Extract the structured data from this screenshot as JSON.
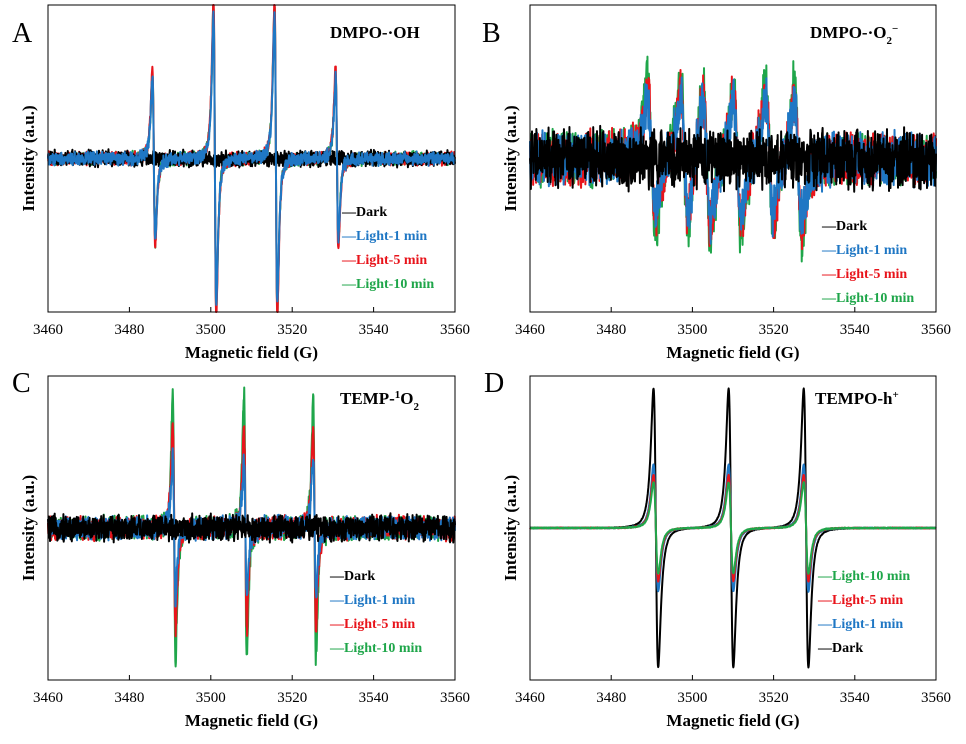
{
  "chart_data": [
    {
      "type": "line",
      "panel_letter": "A",
      "title": "DMPO-·OH",
      "title_parts": [
        {
          "t": "DMPO-·OH",
          "sup": ""
        }
      ],
      "xlabel": "Magnetic field (G)",
      "ylabel": "Intensity (a.u.)",
      "xlim": [
        3460,
        3560
      ],
      "xticks": [
        3460,
        3480,
        3500,
        3520,
        3540,
        3560
      ],
      "ylim": [
        -1.2,
        1.2
      ],
      "legend_position": "bottom-right",
      "line_centers": [
        3486.0,
        3501.0,
        3516.0,
        3531.0
      ],
      "line_heights": [
        0.7,
        1.25,
        1.25,
        0.7
      ],
      "line_width": 0.6,
      "series": [
        {
          "name": "Dark",
          "color": "#000000",
          "amp": 0.0,
          "noise": 0.06
        },
        {
          "name": "Light-1 min",
          "color": "#1f77c4",
          "amp": 0.9,
          "noise": 0.05
        },
        {
          "name": "Light-5 min",
          "color": "#e8141b",
          "amp": 1.0,
          "noise": 0.05
        },
        {
          "name": "Light-10 min",
          "color": "#1fa64a",
          "amp": 0.95,
          "noise": 0.05
        }
      ],
      "draw_order": [
        3,
        2,
        0,
        1
      ],
      "legend_order": [
        0,
        1,
        2,
        3
      ]
    },
    {
      "type": "line",
      "panel_letter": "B",
      "title": "DMPO-·O2−",
      "title_parts": [
        {
          "t": "DMPO-·O",
          "sup": ""
        },
        {
          "t": "2",
          "sub": true
        },
        {
          "t": "−",
          "sup": true
        }
      ],
      "xlabel": "Magnetic field (G)",
      "ylabel": "Intensity (a.u.)",
      "xlim": [
        3460,
        3560
      ],
      "xticks": [
        3460,
        3480,
        3500,
        3520,
        3540,
        3560
      ],
      "ylim": [
        -1.2,
        1.2
      ],
      "legend_position": "bottom-right",
      "line_centers": [
        3490.0,
        3498.0,
        3503.5,
        3511.0,
        3519.0,
        3526.0
      ],
      "line_heights": [
        0.6,
        0.6,
        0.6,
        0.6,
        0.6,
        0.6
      ],
      "line_width": 1.6,
      "series": [
        {
          "name": "Dark",
          "color": "#000000",
          "amp": 0.0,
          "noise": 0.22
        },
        {
          "name": "Light-1 min",
          "color": "#1f77c4",
          "amp": 0.75,
          "noise": 0.2
        },
        {
          "name": "Light-5 min",
          "color": "#e8141b",
          "amp": 0.85,
          "noise": 0.2
        },
        {
          "name": "Light-10 min",
          "color": "#1fa64a",
          "amp": 1.0,
          "noise": 0.2
        }
      ],
      "draw_order": [
        3,
        2,
        1,
        0
      ],
      "legend_order": [
        0,
        1,
        2,
        3
      ]
    },
    {
      "type": "line",
      "panel_letter": "C",
      "title": "TEMP-1O2",
      "title_parts": [
        {
          "t": "TEMP-",
          "sup": ""
        },
        {
          "t": "1",
          "sup": true
        },
        {
          "t": "O",
          "sup": ""
        },
        {
          "t": "2",
          "sub": true
        }
      ],
      "xlabel": "Magnetic field (G)",
      "ylabel": "Intensity (a.u.)",
      "xlim": [
        3460,
        3560
      ],
      "xticks": [
        3460,
        3480,
        3500,
        3520,
        3540,
        3560
      ],
      "ylim": [
        -1.2,
        1.2
      ],
      "legend_position": "bottom-right",
      "line_centers": [
        3491.0,
        3508.5,
        3525.5
      ],
      "line_heights": [
        1.0,
        1.0,
        1.0
      ],
      "line_width": 0.6,
      "series": [
        {
          "name": "Dark",
          "color": "#000000",
          "amp": 0.0,
          "noise": 0.1
        },
        {
          "name": "Light-1 min",
          "color": "#1f77c4",
          "amp": 0.55,
          "noise": 0.09
        },
        {
          "name": "Light-5 min",
          "color": "#e8141b",
          "amp": 0.8,
          "noise": 0.09
        },
        {
          "name": "Light-10 min",
          "color": "#1fa64a",
          "amp": 1.05,
          "noise": 0.09
        }
      ],
      "draw_order": [
        3,
        2,
        1,
        0
      ],
      "legend_order": [
        0,
        1,
        2,
        3
      ]
    },
    {
      "type": "line",
      "panel_letter": "D",
      "title": "TEMPO-h+",
      "title_parts": [
        {
          "t": "TEMPO-h",
          "sup": ""
        },
        {
          "t": "+",
          "sup": true
        }
      ],
      "xlabel": "Magnetic field (G)",
      "ylabel": "Intensity (a.u.)",
      "xlim": [
        3460,
        3560
      ],
      "xticks": [
        3460,
        3480,
        3500,
        3520,
        3540,
        3560
      ],
      "ylim": [
        -1.2,
        1.2
      ],
      "legend_position": "bottom-right",
      "line_centers": [
        3491.0,
        3509.5,
        3528.0
      ],
      "line_heights": [
        1.0,
        1.0,
        1.0
      ],
      "line_width": 1.0,
      "series": [
        {
          "name": "Light-10 min",
          "color": "#1fa64a",
          "amp": 0.36,
          "noise": 0.004
        },
        {
          "name": "Light-5 min",
          "color": "#e8141b",
          "amp": 0.42,
          "noise": 0.004
        },
        {
          "name": "Light-1 min",
          "color": "#1f77c4",
          "amp": 0.5,
          "noise": 0.004
        },
        {
          "name": "Dark",
          "color": "#000000",
          "amp": 1.1,
          "noise": 0.003
        }
      ],
      "draw_order": [
        3,
        2,
        1,
        0
      ],
      "legend_order": [
        0,
        1,
        2,
        3
      ]
    }
  ]
}
